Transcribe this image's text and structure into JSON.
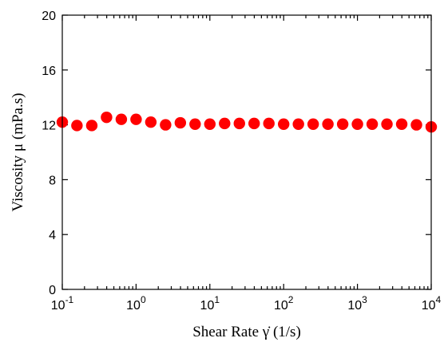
{
  "chart_data": {
    "type": "scatter",
    "x_scale": "log",
    "xlim": [
      0.1,
      10000
    ],
    "ylim": [
      0,
      20
    ],
    "grid": false,
    "legend": "none",
    "xlabel": "Shear Rate γ̇ (1/s)",
    "ylabel": "Viscosity μ (mPa.s)",
    "x_tick_labels": [
      {
        "base": "10",
        "exp": "-1"
      },
      {
        "base": "10",
        "exp": "0"
      },
      {
        "base": "10",
        "exp": "1"
      },
      {
        "base": "10",
        "exp": "2"
      },
      {
        "base": "10",
        "exp": "3"
      },
      {
        "base": "10",
        "exp": "4"
      }
    ],
    "y_tick_labels": [
      "0",
      "4",
      "8",
      "12",
      "16",
      "20"
    ],
    "series": [
      {
        "color": "#ff0000",
        "marker": "circle",
        "x": [
          0.1,
          0.158,
          0.251,
          0.398,
          0.631,
          1.0,
          1.585,
          2.512,
          3.981,
          6.31,
          10.0,
          15.85,
          25.12,
          39.81,
          63.1,
          100.0,
          158.5,
          251.2,
          398.1,
          631.0,
          1000.0,
          1585.0,
          2512.0,
          3981.0,
          6310.0,
          10000.0
        ],
        "y": [
          12.2,
          11.95,
          11.95,
          12.55,
          12.4,
          12.4,
          12.2,
          12.0,
          12.15,
          12.05,
          12.05,
          12.1,
          12.1,
          12.1,
          12.1,
          12.05,
          12.05,
          12.05,
          12.05,
          12.05,
          12.05,
          12.05,
          12.05,
          12.05,
          12.0,
          11.85
        ]
      }
    ]
  }
}
